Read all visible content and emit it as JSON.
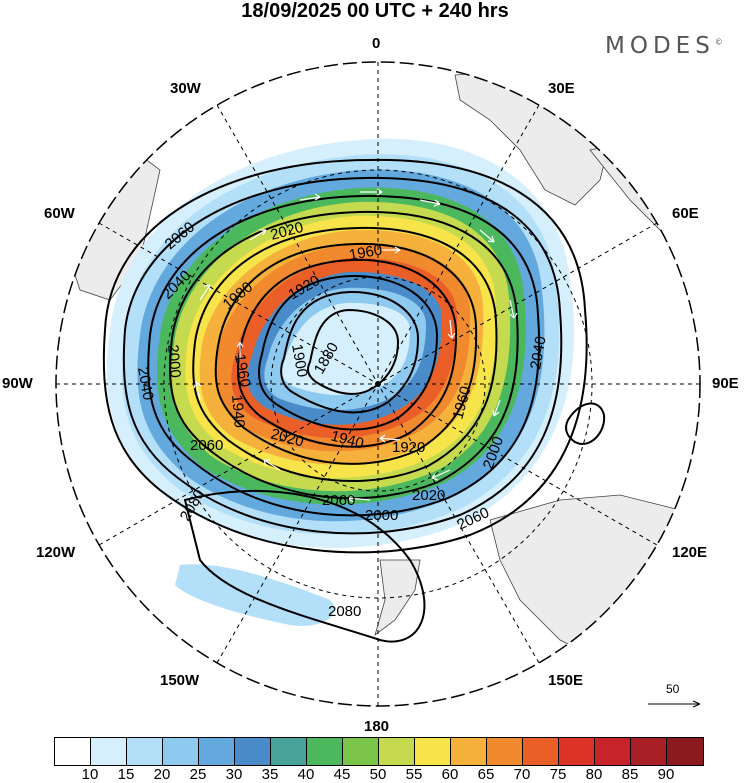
{
  "title": "18/09/2025  00 UTC  + 240 hrs",
  "brand": "MODES",
  "brand_mark": "©",
  "longitude_labels": {
    "n0": "0",
    "e30": "30E",
    "e60": "60E",
    "e90": "90E",
    "e120": "120E",
    "e150": "150E",
    "s180": "180",
    "w150": "150W",
    "w120": "120W",
    "w90": "90W",
    "w60": "60W",
    "w30": "30W"
  },
  "contour_labels": [
    "2060",
    "2040",
    "2040",
    "2020",
    "1980",
    "1960",
    "1920",
    "1900",
    "1880",
    "1960",
    "1940",
    "2000",
    "2000",
    "2020",
    "2060",
    "1940",
    "1920",
    "2020",
    "1960",
    "2040",
    "2000",
    "2060",
    "2080",
    "2080",
    "2060"
  ],
  "reference_vector": "50",
  "colorbar": {
    "ticks": [
      "10",
      "15",
      "20",
      "25",
      "30",
      "35",
      "40",
      "45",
      "50",
      "55",
      "60",
      "65",
      "70",
      "75",
      "80",
      "85",
      "90"
    ],
    "colors": [
      "#ffffff",
      "#d6effc",
      "#b3e0f8",
      "#8ec9ef",
      "#63a9dd",
      "#4a8cc9",
      "#4aa39a",
      "#4cb85e",
      "#7ac44a",
      "#c5da4e",
      "#f7e34a",
      "#f6b13d",
      "#f18a2f",
      "#ea5f28",
      "#dd3428",
      "#c62428",
      "#a81f26",
      "#8b1a1f"
    ]
  }
}
